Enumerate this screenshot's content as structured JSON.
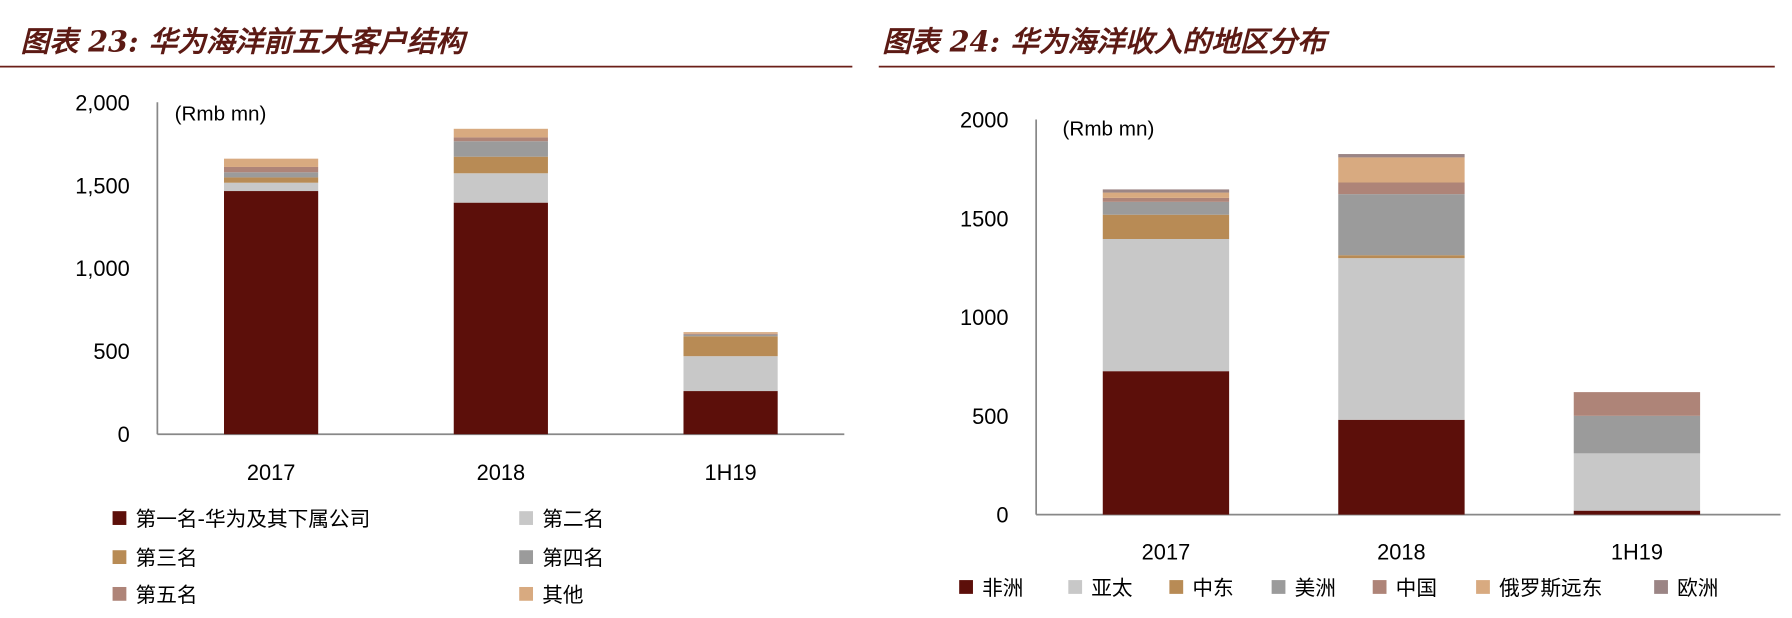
{
  "chart_data": [
    {
      "type": "bar",
      "stacked": true,
      "title": "图表 23: 华为海洋前五大客户结构",
      "unit_label": "(Rmb mn)",
      "categories": [
        "2017",
        "2018",
        "1H19"
      ],
      "ylim": [
        0,
        2000
      ],
      "yticks": [
        0,
        500,
        1000,
        1500,
        2000
      ],
      "ytick_labels": [
        "0",
        "500",
        "1,000",
        "1,500",
        "2,000"
      ],
      "grid": false,
      "legend_position": "bottom",
      "series": [
        {
          "name": "第一名-华为及其下属公司",
          "color": "#5c0f0a",
          "values": [
            1465,
            1395,
            260
          ]
        },
        {
          "name": "第二名",
          "color": "#c8c8c8",
          "values": [
            50,
            177,
            210
          ]
        },
        {
          "name": "第三名",
          "color": "#b88b55",
          "values": [
            32,
            100,
            120
          ]
        },
        {
          "name": "第四名",
          "color": "#9b9b9b",
          "values": [
            31,
            93,
            10
          ]
        },
        {
          "name": "第五名",
          "color": "#ae8478",
          "values": [
            32,
            23,
            5
          ]
        },
        {
          "name": "其他",
          "color": "#d8aa80",
          "values": [
            50,
            52,
            10
          ]
        }
      ]
    },
    {
      "type": "bar",
      "stacked": true,
      "title": "图表 24: 华为海洋收入的地区分布",
      "unit_label": "(Rmb mn)",
      "categories": [
        "2017",
        "2018",
        "1H19"
      ],
      "ylim": [
        0,
        2000
      ],
      "yticks": [
        0,
        500,
        1000,
        1500,
        2000
      ],
      "ytick_labels": [
        "0",
        "500",
        "1000",
        "1500",
        "2000"
      ],
      "grid": false,
      "legend_position": "bottom",
      "series": [
        {
          "name": "非洲",
          "color": "#5c0f0a",
          "values": [
            726,
            480,
            20
          ]
        },
        {
          "name": "亚太",
          "color": "#c8c8c8",
          "values": [
            669,
            818,
            290
          ]
        },
        {
          "name": "中东",
          "color": "#b88b55",
          "values": [
            123,
            15,
            0
          ]
        },
        {
          "name": "美洲",
          "color": "#9b9b9b",
          "values": [
            65,
            309,
            190
          ]
        },
        {
          "name": "中国",
          "color": "#ae8478",
          "values": [
            20,
            59,
            120
          ]
        },
        {
          "name": "俄罗斯远东",
          "color": "#d8aa80",
          "values": [
            27,
            127,
            0
          ]
        },
        {
          "name": "欧洲",
          "color": "#9b8585",
          "values": [
            16,
            17,
            0
          ]
        }
      ]
    }
  ]
}
